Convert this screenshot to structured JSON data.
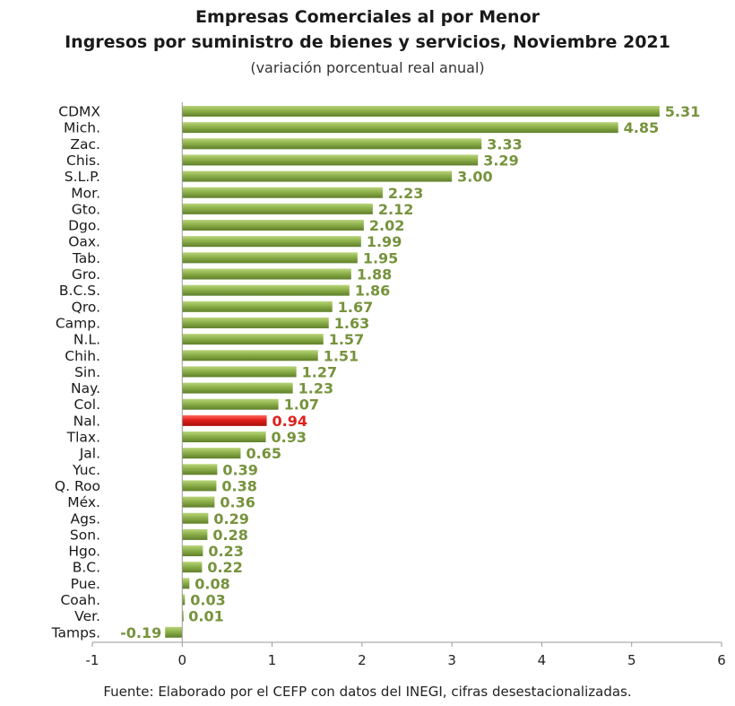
{
  "chart_data": {
    "type": "bar",
    "orientation": "horizontal",
    "title_line1": "Empresas Comerciales al por Menor",
    "title_line2": "Ingresos por suministro de bienes y servicios, Noviembre 2021",
    "subtitle": "(variación porcentual real anual)",
    "source": "Fuente: Elaborado por el CEFP con datos del INEGI, cifras desestacionalizadas.",
    "categories": [
      "CDMX",
      "Mich.",
      "Zac.",
      "Chis.",
      "S.L.P.",
      "Mor.",
      "Gto.",
      "Dgo.",
      "Oax.",
      "Tab.",
      "Gro.",
      "B.C.S.",
      "Qro.",
      "Camp.",
      "N.L.",
      "Chih.",
      "Sin.",
      "Nay.",
      "Col.",
      "Nal.",
      "Tlax.",
      "Jal.",
      "Yuc.",
      "Q. Roo",
      "Méx.",
      "Ags.",
      "Son.",
      "Hgo.",
      "B.C.",
      "Pue.",
      "Coah.",
      "Ver.",
      "Tamps."
    ],
    "values": [
      5.31,
      4.85,
      3.33,
      3.29,
      3.0,
      2.23,
      2.12,
      2.02,
      1.99,
      1.95,
      1.88,
      1.86,
      1.67,
      1.63,
      1.57,
      1.51,
      1.27,
      1.23,
      1.07,
      0.94,
      0.93,
      0.65,
      0.39,
      0.38,
      0.36,
      0.29,
      0.28,
      0.23,
      0.22,
      0.08,
      0.03,
      0.01,
      -0.19
    ],
    "value_labels": [
      "5.31",
      "4.85",
      "3.33",
      "3.29",
      "3.00",
      "2.23",
      "2.12",
      "2.02",
      "1.99",
      "1.95",
      "1.88",
      "1.86",
      "1.67",
      "1.63",
      "1.57",
      "1.51",
      "1.27",
      "1.23",
      "1.07",
      "0.94",
      "0.93",
      "0.65",
      "0.39",
      "0.38",
      "0.36",
      "0.29",
      "0.28",
      "0.23",
      "0.22",
      "0.08",
      "0.03",
      "0.01",
      "-0.19"
    ],
    "highlight_category": "Nal.",
    "xlim": [
      -1,
      6
    ],
    "xticks": [
      -1,
      0,
      1,
      2,
      3,
      4,
      5,
      6
    ],
    "grid": false,
    "colors": {
      "bar": "#8db04a",
      "bar_dark": "#5f7f2a",
      "bar_light": "#b9d47a",
      "highlight": "#e0201c",
      "highlight_dark": "#a80e0c",
      "highlight_light": "#ff6a60",
      "label": "#76933c",
      "label_highlight": "#e0201c",
      "axis": "#9a9a9a"
    }
  }
}
